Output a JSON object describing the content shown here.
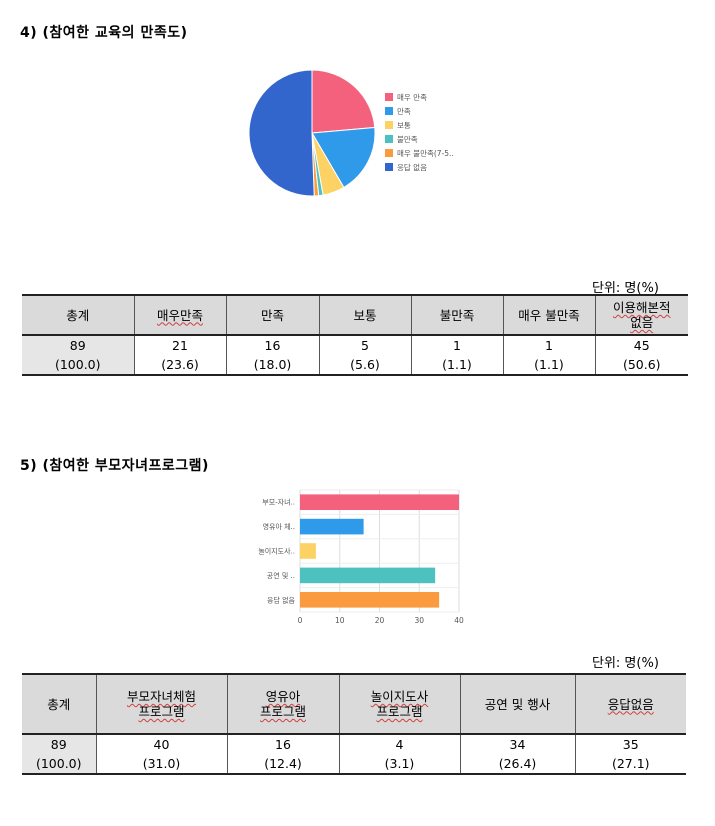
{
  "section4": {
    "heading": "4) (참여한 교육의 만족도)",
    "unit": "단위:  명(%)",
    "chart_data": {
      "type": "pie",
      "categories": [
        "매우 만족",
        "만족",
        "보통",
        "불만족",
        "매우 불만족(7-5..",
        "응답 없음"
      ],
      "values": [
        21,
        16,
        5,
        1,
        1,
        45
      ],
      "colors": [
        "#f4617d",
        "#2f9ae9",
        "#fcd264",
        "#4cc1c0",
        "#fb9b3f",
        "#3366cc"
      ]
    },
    "table": {
      "headers": [
        "총계",
        "매우만족",
        "만족",
        "보통",
        "불만족",
        "매우 불만족",
        "이용해본적 없음"
      ],
      "header_lines": [
        [
          "총계"
        ],
        [
          "매우만족"
        ],
        [
          "만족"
        ],
        [
          "보통"
        ],
        [
          "불만족"
        ],
        [
          "매우 불만족"
        ],
        [
          "이용해본적",
          "없음"
        ]
      ],
      "counts": [
        "89",
        "21",
        "16",
        "5",
        "1",
        "1",
        "45"
      ],
      "percents": [
        "(100.0)",
        "(23.6)",
        "(18.0)",
        "(5.6)",
        "(1.1)",
        "(1.1)",
        "(50.6)"
      ]
    }
  },
  "section5": {
    "heading": "5) (참여한 부모자녀프로그램)",
    "unit": "단위:  명(%)",
    "chart_data": {
      "type": "bar",
      "orientation": "horizontal",
      "categories": [
        "부모-자녀..",
        "영유아 체..",
        "놀이지도사..",
        "공연 및 ..",
        "응답 없음"
      ],
      "values": [
        40,
        16,
        4,
        34,
        35
      ],
      "colors": [
        "#f4617d",
        "#2f9ae9",
        "#fcd264",
        "#4cc1c0",
        "#fb9b3f"
      ],
      "xlim": [
        0,
        40
      ],
      "xticks": [
        "0",
        "10",
        "20",
        "30",
        "40"
      ],
      "grid": true
    },
    "table": {
      "headers": [
        "총계",
        "부모자녀체험 프로그램",
        "영유아 프로그램",
        "놀이지도사 프로그램",
        "공연 및 행사",
        "응답없음"
      ],
      "header_lines": [
        [
          "총계"
        ],
        [
          "부모자녀체험",
          "프로그램"
        ],
        [
          "영유아",
          "프로그램"
        ],
        [
          "놀이지도사",
          "프로그램"
        ],
        [
          "공연 및 행사"
        ],
        [
          "응답없음"
        ]
      ],
      "counts": [
        "89",
        "40",
        "16",
        "4",
        "34",
        "35"
      ],
      "percents": [
        "(100.0)",
        "(31.0)",
        "(12.4)",
        "(3.1)",
        "(26.4)",
        "(27.1)"
      ]
    }
  }
}
